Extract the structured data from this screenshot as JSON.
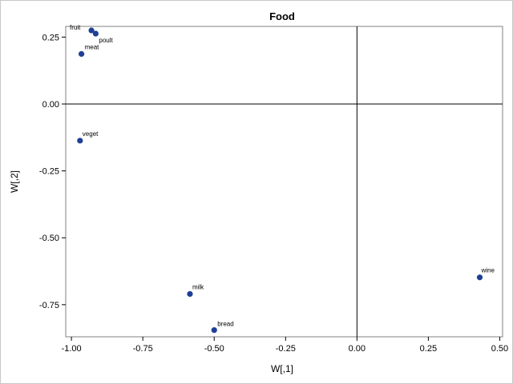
{
  "chart_data": {
    "type": "scatter",
    "title": "Food",
    "xlabel": "W[,1]",
    "ylabel": "W[,2]",
    "xlim": [
      -1.02,
      0.51
    ],
    "ylim": [
      -0.87,
      0.29
    ],
    "x_ticks": [
      -1.0,
      -0.75,
      -0.5,
      -0.25,
      0.0,
      0.25,
      0.5
    ],
    "x_tick_labels": [
      "-1.00",
      "-0.75",
      "-0.50",
      "-0.25",
      "0.00",
      "0.25",
      "0.50"
    ],
    "y_ticks": [
      0.25,
      0.0,
      -0.25,
      -0.5,
      -0.75
    ],
    "y_tick_labels": [
      "0.25",
      "0.00",
      "-0.25",
      "-0.50",
      "-0.75"
    ],
    "reference_lines": {
      "x": 0.0,
      "y": 0.0
    },
    "grid": false,
    "marker_color": "#1f3f97",
    "points": [
      {
        "label": "fruit",
        "x": -0.93,
        "y": 0.275
      },
      {
        "label": "poult",
        "x": -0.915,
        "y": 0.263
      },
      {
        "label": "meat",
        "x": -0.965,
        "y": 0.187
      },
      {
        "label": "veget",
        "x": -0.97,
        "y": -0.137
      },
      {
        "label": "milk",
        "x": -0.585,
        "y": -0.71
      },
      {
        "label": "bread",
        "x": -0.5,
        "y": -0.845
      },
      {
        "label": "wine",
        "x": 0.43,
        "y": -0.648
      }
    ]
  }
}
